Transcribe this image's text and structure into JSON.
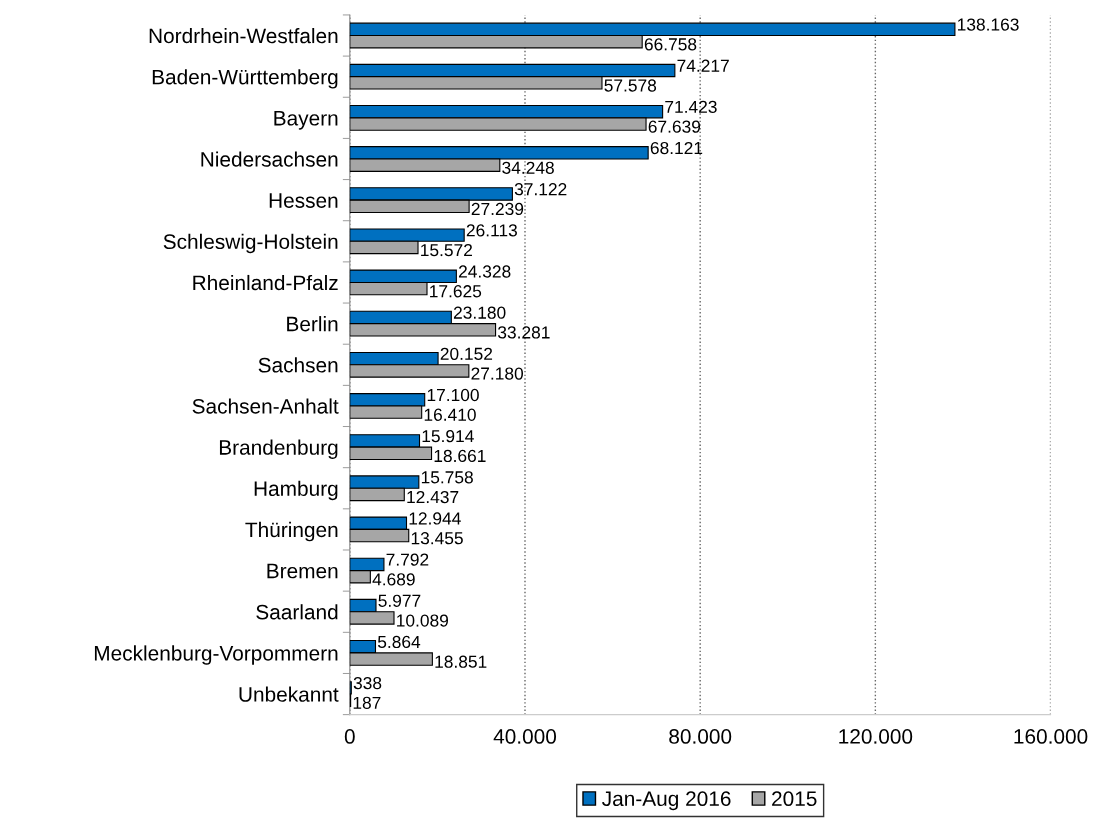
{
  "chart_data": {
    "type": "bar",
    "orientation": "horizontal",
    "categories": [
      "Nordrhein-Westfalen",
      "Baden-Württemberg",
      "Bayern",
      "Niedersachsen",
      "Hessen",
      "Schleswig-Holstein",
      "Rheinland-Pfalz",
      "Berlin",
      "Sachsen",
      "Sachsen-Anhalt",
      "Brandenburg",
      "Hamburg",
      "Thüringen",
      "Bremen",
      "Saarland",
      "Mecklenburg-Vorpommern",
      "Unbekannt"
    ],
    "series": [
      {
        "name": "Jan-Aug 2016",
        "color": "#0070c0",
        "values": [
          138163,
          74217,
          71423,
          68121,
          37122,
          26113,
          24328,
          23180,
          20152,
          17100,
          15914,
          15758,
          12944,
          7792,
          5977,
          5864,
          338
        ],
        "value_labels": [
          "138.163",
          "74.217",
          "71.423",
          "68.121",
          "37.122",
          "26.113",
          "24.328",
          "23.180",
          "20.152",
          "17.100",
          "15.914",
          "15.758",
          "12.944",
          "7.792",
          "5.977",
          "5.864",
          "338"
        ]
      },
      {
        "name": "2015",
        "color": "#a6a6a6",
        "values": [
          66758,
          57578,
          67639,
          34248,
          27239,
          15572,
          17625,
          33281,
          27180,
          16410,
          18661,
          12437,
          13455,
          4689,
          10089,
          18851,
          187
        ],
        "value_labels": [
          "66.758",
          "57.578",
          "67.639",
          "34.248",
          "27.239",
          "15.572",
          "17.625",
          "33.281",
          "27.180",
          "16.410",
          "18.661",
          "12.437",
          "13.455",
          "4.689",
          "10.089",
          "18.851",
          "187"
        ]
      }
    ],
    "xlim": [
      0,
      160000
    ],
    "xticks": [
      0,
      {
        "value": 40000,
        "label": "40.000"
      },
      {
        "value": 80000,
        "label": "80.000"
      },
      {
        "value": 120000,
        "label": "120.000"
      },
      {
        "value": 160000,
        "label": "160.000"
      }
    ],
    "grid": "x",
    "legend": "bottom"
  }
}
